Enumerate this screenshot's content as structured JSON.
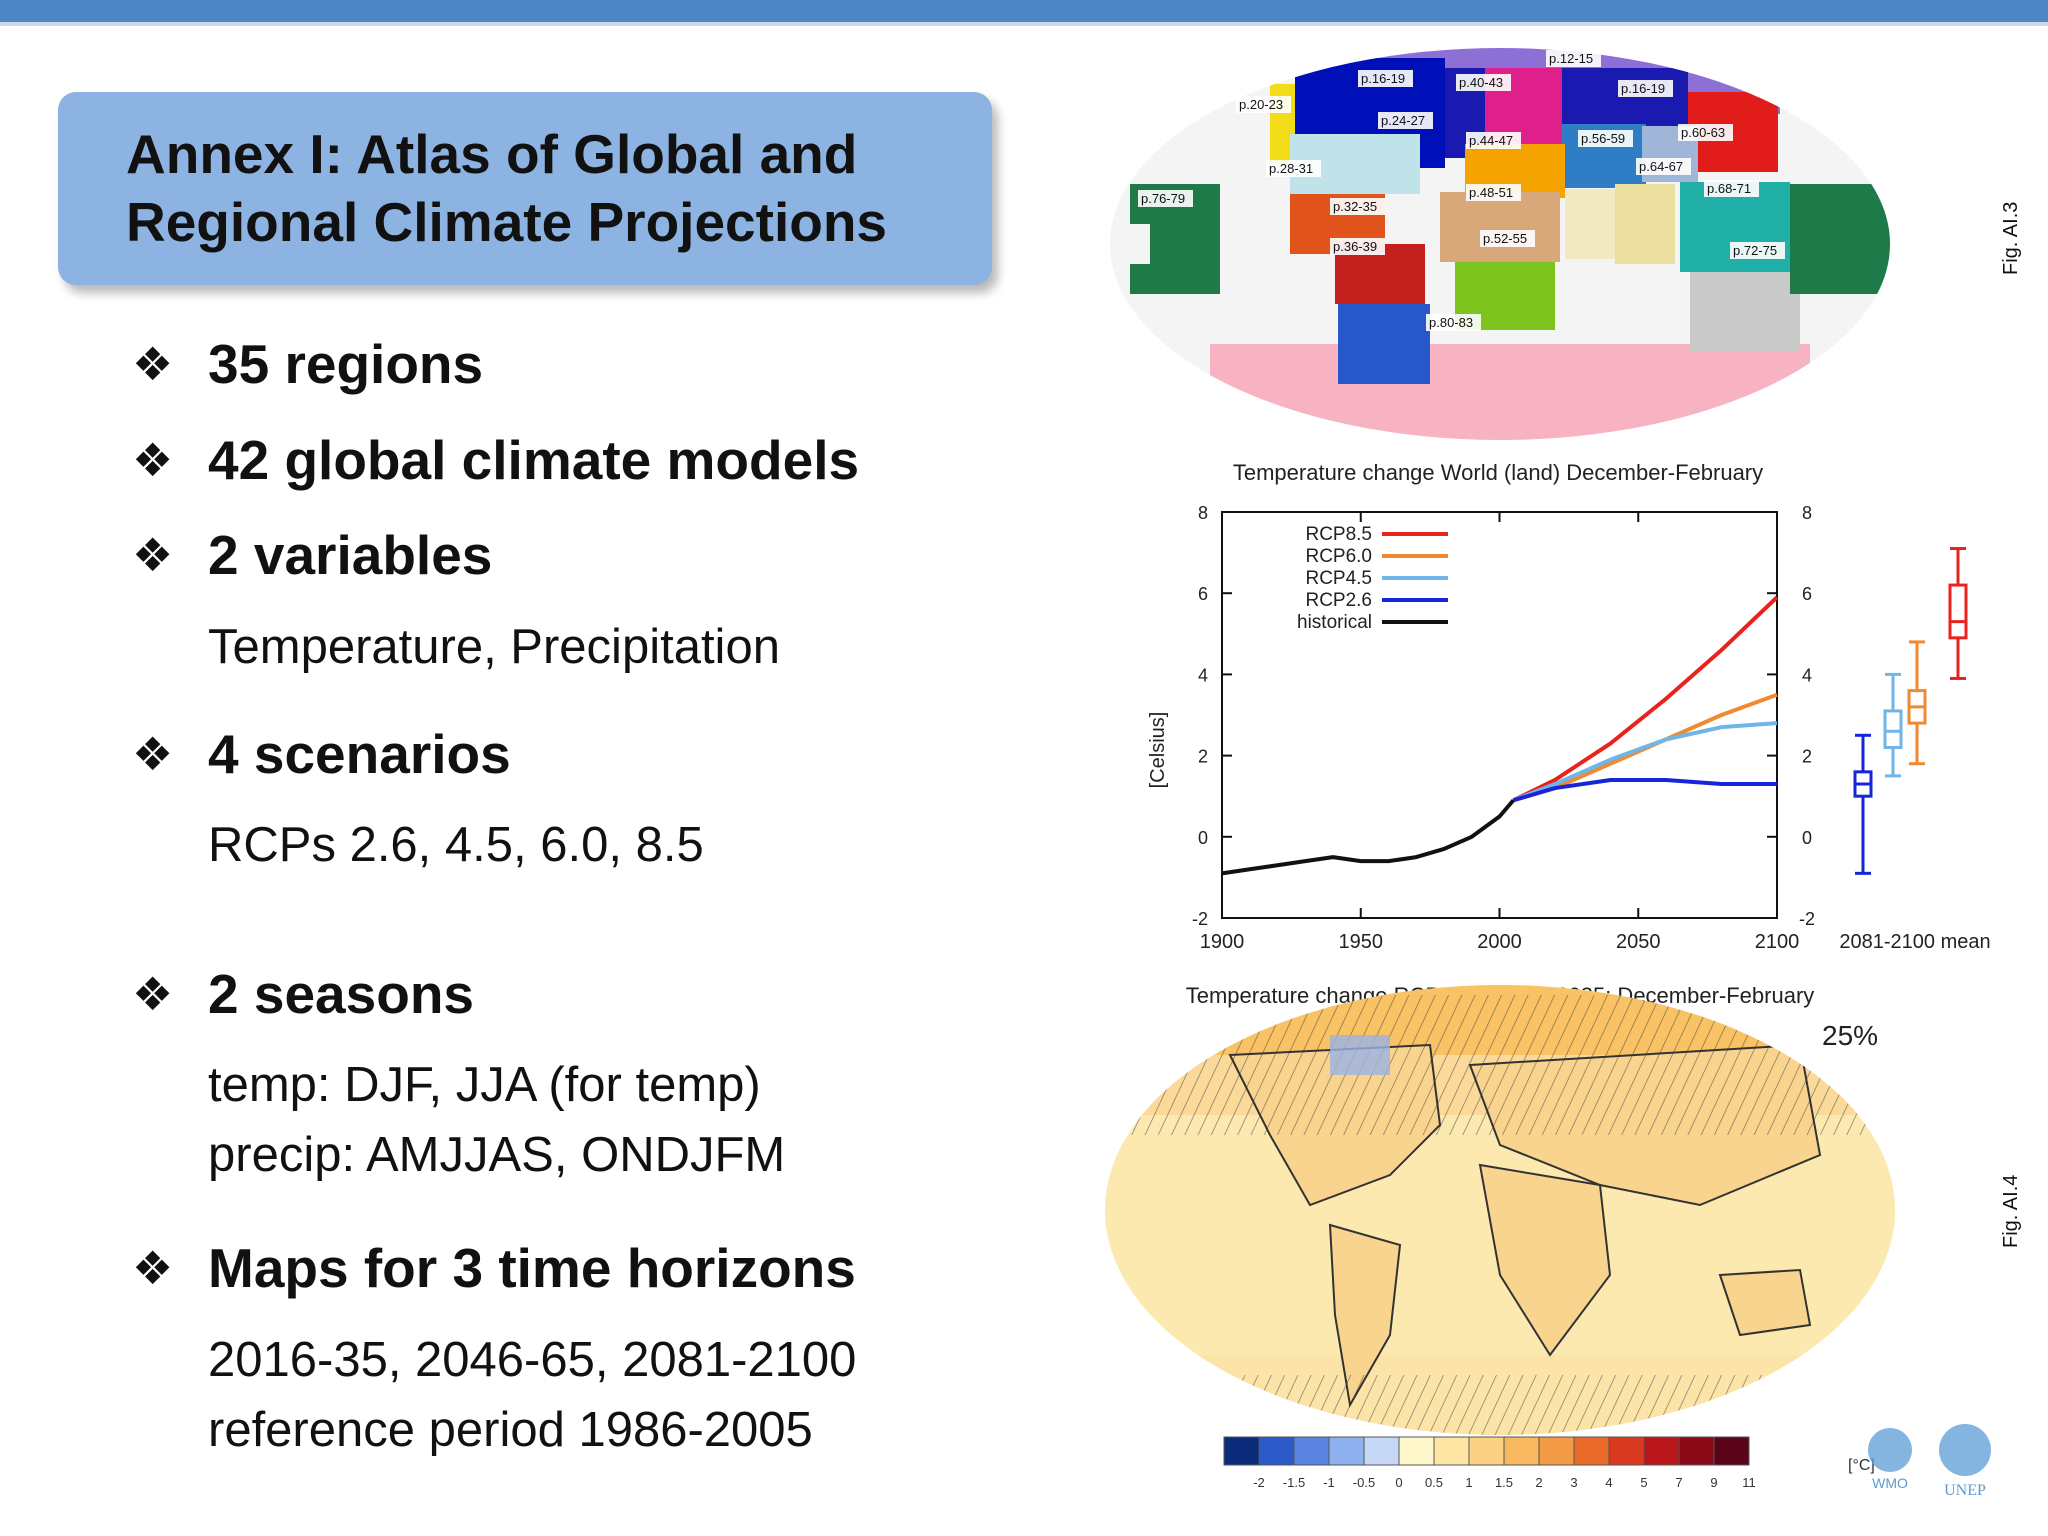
{
  "title": {
    "line1": "Annex I: Atlas of Global and",
    "line2": "Regional Climate Projections"
  },
  "bullets": [
    {
      "heading": "35 regions"
    },
    {
      "heading": "42 global climate models"
    },
    {
      "heading": "2 variables",
      "details": [
        "Temperature, Precipitation"
      ]
    },
    {
      "heading": "4 scenarios",
      "details": [
        "RCPs 2.6, 4.5, 6.0, 8.5"
      ]
    },
    {
      "heading": "2 seasons",
      "details": [
        "temp: DJF, JJA (for temp)",
        "precip: AMJJAS, ONDJFM"
      ]
    },
    {
      "heading": "Maps for 3 time horizons",
      "details": [
        "2016-35, 2046-65, 2081-2100",
        "reference period 1986-2005"
      ]
    }
  ],
  "bullet_marker": "❖",
  "region_map": {
    "page_labels": [
      "p.12-15",
      "p.16-19",
      "p.40-43",
      "p.16-19",
      "p.20-23",
      "p.24-27",
      "p.44-47",
      "p.56-59",
      "p.60-63",
      "p.28-31",
      "p.64-67",
      "p.76-79",
      "p.32-35",
      "p.48-51",
      "p.68-71",
      "p.52-55",
      "p.36-39",
      "p.72-75",
      "p.80-83"
    ],
    "fig_label": "Fig. AI.3"
  },
  "chart_data": {
    "type": "line",
    "title": "Temperature change World (land) December-February",
    "xlabel": "",
    "ylabel": "[Celsius]",
    "xlim": [
      1900,
      2100
    ],
    "ylim": [
      -2,
      8
    ],
    "x_ticks": [
      "1900",
      "1950",
      "2000",
      "2050",
      "2100"
    ],
    "y_ticks": [
      "-2",
      "0",
      "2",
      "4",
      "6",
      "8"
    ],
    "right_label": "2081-2100 mean",
    "series": [
      {
        "name": "RCP8.5",
        "color": "#e8231e",
        "x": [
          2005,
          2020,
          2040,
          2060,
          2080,
          2100
        ],
        "values": [
          0.9,
          1.4,
          2.3,
          3.4,
          4.6,
          5.9
        ]
      },
      {
        "name": "RCP6.0",
        "color": "#f08a30",
        "x": [
          2005,
          2020,
          2040,
          2060,
          2080,
          2100
        ],
        "values": [
          0.9,
          1.2,
          1.8,
          2.4,
          3.0,
          3.5
        ]
      },
      {
        "name": "RCP4.5",
        "color": "#6fb5e8",
        "x": [
          2005,
          2020,
          2040,
          2060,
          2080,
          2100
        ],
        "values": [
          0.9,
          1.3,
          1.9,
          2.4,
          2.7,
          2.8
        ]
      },
      {
        "name": "RCP2.6",
        "color": "#1625d8",
        "x": [
          2005,
          2020,
          2040,
          2060,
          2080,
          2100
        ],
        "values": [
          0.9,
          1.2,
          1.4,
          1.4,
          1.3,
          1.3
        ]
      },
      {
        "name": "historical",
        "color": "#111111",
        "x": [
          1900,
          1910,
          1920,
          1930,
          1940,
          1950,
          1960,
          1970,
          1980,
          1990,
          2000,
          2005
        ],
        "values": [
          -0.9,
          -0.8,
          -0.7,
          -0.6,
          -0.5,
          -0.6,
          -0.6,
          -0.5,
          -0.3,
          0.0,
          0.5,
          0.9
        ]
      }
    ],
    "boxes": [
      {
        "name": "RCP2.6",
        "color": "#1625d8",
        "low": -0.9,
        "q1": 1.0,
        "median": 1.3,
        "q3": 1.6,
        "high": 2.5
      },
      {
        "name": "RCP4.5",
        "color": "#6fb5e8",
        "low": 1.5,
        "q1": 2.2,
        "median": 2.6,
        "q3": 3.1,
        "high": 4.0
      },
      {
        "name": "RCP6.0",
        "color": "#f08a30",
        "low": 1.8,
        "q1": 2.8,
        "median": 3.2,
        "q3": 3.6,
        "high": 4.8
      },
      {
        "name": "RCP8.5",
        "color": "#e8231e",
        "low": 3.9,
        "q1": 4.9,
        "median": 5.3,
        "q3": 6.2,
        "high": 7.1
      }
    ]
  },
  "projection_map": {
    "title": "Temperature change RCP4.5 in 2016-2035: December-February",
    "percent": "25%",
    "colorbar_labels": [
      "-2",
      "-1.5",
      "-1",
      "-0.5",
      "0",
      "0.5",
      "1",
      "1.5",
      "2",
      "3",
      "4",
      "5",
      "7",
      "9",
      "11"
    ],
    "colorbar_colors": [
      "#0b2a7a",
      "#2b59c8",
      "#5b84e0",
      "#8fb0ee",
      "#c7d8f6",
      "#fff7cc",
      "#fde6a3",
      "#fbd283",
      "#f8b860",
      "#f39a44",
      "#ea6a2a",
      "#d93a1f",
      "#b8161a",
      "#8a0a18",
      "#5a041a"
    ],
    "unit": "[°C]",
    "fig_label": "Fig. AI.4",
    "logos": [
      "WMO",
      "UNEP"
    ]
  }
}
